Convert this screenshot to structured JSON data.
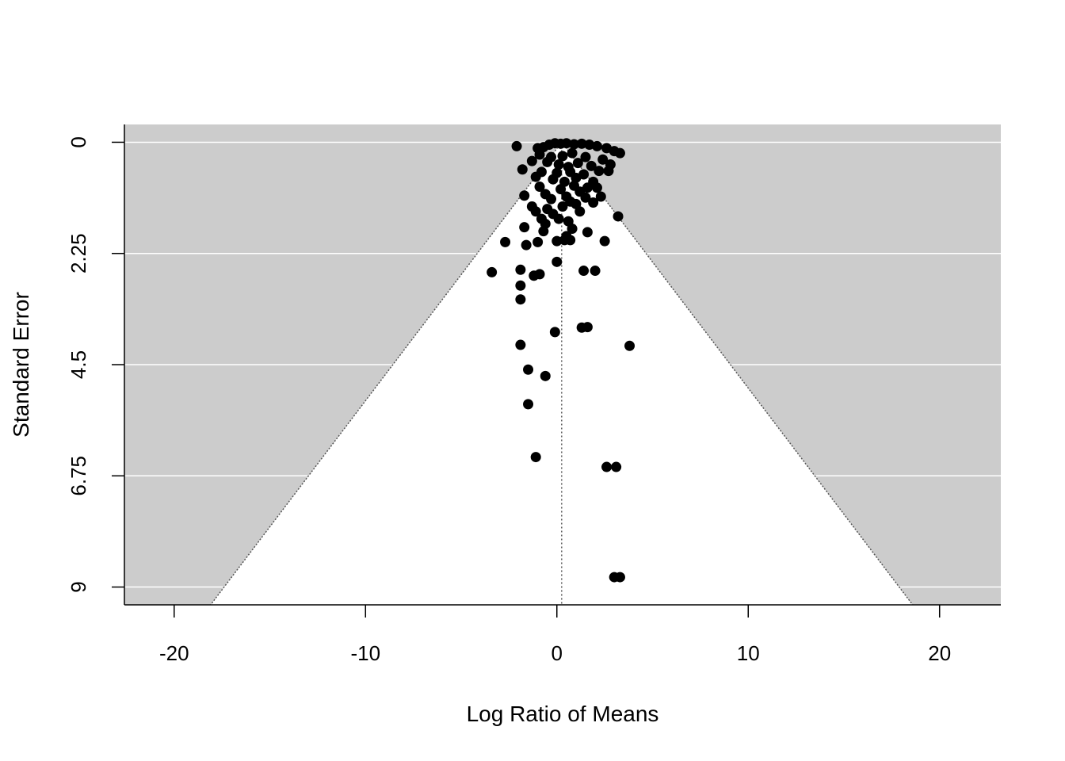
{
  "chart_data": {
    "type": "scatter",
    "title": "",
    "xlabel": "Log Ratio of Means",
    "ylabel": "Standard Error",
    "xlim": [
      -22.6,
      23.2
    ],
    "ylim": [
      9.36,
      -0.36
    ],
    "y_reversed": true,
    "x_ticks": [
      -20,
      -10,
      0,
      10,
      20
    ],
    "x_tick_labels": [
      "-20",
      "-10",
      "0",
      "10",
      "20"
    ],
    "y_ticks": [
      0,
      2.25,
      4.5,
      6.75,
      9
    ],
    "y_tick_labels": [
      "0",
      "2.25",
      "4.5",
      "6.75",
      "9"
    ],
    "grid": "horizontal at y ticks",
    "funnel_center": 0.25,
    "funnel_z": 1.96,
    "colors": {
      "background": "#cccccc",
      "funnel": "#ffffff",
      "grid": "#ffffff",
      "points": "#000000",
      "axis": "#000000"
    },
    "points": [
      {
        "x": -2.1,
        "y": 0.08
      },
      {
        "x": -1.0,
        "y": 0.12
      },
      {
        "x": -0.7,
        "y": 0.1
      },
      {
        "x": -0.4,
        "y": 0.05
      },
      {
        "x": -0.1,
        "y": 0.02
      },
      {
        "x": 0.2,
        "y": 0.03
      },
      {
        "x": 0.5,
        "y": 0.02
      },
      {
        "x": 0.9,
        "y": 0.04
      },
      {
        "x": 1.3,
        "y": 0.03
      },
      {
        "x": 1.7,
        "y": 0.05
      },
      {
        "x": 2.1,
        "y": 0.08
      },
      {
        "x": 2.6,
        "y": 0.12
      },
      {
        "x": 3.0,
        "y": 0.18
      },
      {
        "x": 3.3,
        "y": 0.22
      },
      {
        "x": -0.9,
        "y": 0.25
      },
      {
        "x": -0.3,
        "y": 0.3
      },
      {
        "x": 0.3,
        "y": 0.28
      },
      {
        "x": 0.8,
        "y": 0.22
      },
      {
        "x": 1.5,
        "y": 0.3
      },
      {
        "x": 2.4,
        "y": 0.35
      },
      {
        "x": -1.3,
        "y": 0.38
      },
      {
        "x": -0.5,
        "y": 0.4
      },
      {
        "x": 0.1,
        "y": 0.45
      },
      {
        "x": 0.6,
        "y": 0.5
      },
      {
        "x": 1.1,
        "y": 0.42
      },
      {
        "x": 1.8,
        "y": 0.48
      },
      {
        "x": 2.8,
        "y": 0.45
      },
      {
        "x": -1.8,
        "y": 0.55
      },
      {
        "x": -0.8,
        "y": 0.6
      },
      {
        "x": 0.0,
        "y": 0.62
      },
      {
        "x": 0.7,
        "y": 0.6
      },
      {
        "x": 1.4,
        "y": 0.65
      },
      {
        "x": 2.2,
        "y": 0.58
      },
      {
        "x": 2.7,
        "y": 0.58
      },
      {
        "x": -1.1,
        "y": 0.7
      },
      {
        "x": -0.2,
        "y": 0.75
      },
      {
        "x": 0.4,
        "y": 0.8
      },
      {
        "x": 1.0,
        "y": 0.72
      },
      {
        "x": 1.9,
        "y": 0.8
      },
      {
        "x": -0.9,
        "y": 0.9
      },
      {
        "x": 0.2,
        "y": 0.95
      },
      {
        "x": 0.9,
        "y": 0.88
      },
      {
        "x": 1.6,
        "y": 0.92
      },
      {
        "x": -0.6,
        "y": 1.05
      },
      {
        "x": 0.5,
        "y": 1.1
      },
      {
        "x": 1.2,
        "y": 1.0
      },
      {
        "x": 2.1,
        "y": 0.92
      },
      {
        "x": -1.7,
        "y": 1.08
      },
      {
        "x": -0.3,
        "y": 1.15
      },
      {
        "x": 0.7,
        "y": 1.2
      },
      {
        "x": 1.5,
        "y": 1.12
      },
      {
        "x": 2.3,
        "y": 1.1
      },
      {
        "x": -1.3,
        "y": 1.3
      },
      {
        "x": -0.5,
        "y": 1.35
      },
      {
        "x": 0.3,
        "y": 1.3
      },
      {
        "x": 1.0,
        "y": 1.25
      },
      {
        "x": 1.9,
        "y": 1.22
      },
      {
        "x": -0.8,
        "y": 1.55
      },
      {
        "x": -0.2,
        "y": 1.45
      },
      {
        "x": 0.6,
        "y": 1.6
      },
      {
        "x": 1.2,
        "y": 1.4
      },
      {
        "x": 3.2,
        "y": 1.5
      },
      {
        "x": -1.1,
        "y": 1.4
      },
      {
        "x": -0.6,
        "y": 1.65
      },
      {
        "x": 0.1,
        "y": 1.55
      },
      {
        "x": 0.8,
        "y": 1.75
      },
      {
        "x": -1.7,
        "y": 1.72
      },
      {
        "x": -0.7,
        "y": 1.8
      },
      {
        "x": 0.5,
        "y": 1.9
      },
      {
        "x": 1.6,
        "y": 1.82
      },
      {
        "x": 0.7,
        "y": 1.98
      },
      {
        "x": -2.7,
        "y": 2.02
      },
      {
        "x": -1.6,
        "y": 2.08
      },
      {
        "x": -1.0,
        "y": 2.02
      },
      {
        "x": 0.0,
        "y": 2.0
      },
      {
        "x": 0.4,
        "y": 1.98
      },
      {
        "x": 2.5,
        "y": 2.0
      },
      {
        "x": 0.0,
        "y": 2.42
      },
      {
        "x": -3.4,
        "y": 2.63
      },
      {
        "x": -1.9,
        "y": 2.58
      },
      {
        "x": -1.2,
        "y": 2.7
      },
      {
        "x": -0.9,
        "y": 2.67
      },
      {
        "x": 1.4,
        "y": 2.6
      },
      {
        "x": 2.0,
        "y": 2.6
      },
      {
        "x": -1.9,
        "y": 2.9
      },
      {
        "x": -1.9,
        "y": 3.18
      },
      {
        "x": 1.3,
        "y": 3.75
      },
      {
        "x": 1.6,
        "y": 3.74
      },
      {
        "x": -0.1,
        "y": 3.84
      },
      {
        "x": -1.9,
        "y": 4.1
      },
      {
        "x": 3.8,
        "y": 4.12
      },
      {
        "x": -1.5,
        "y": 4.6
      },
      {
        "x": -0.6,
        "y": 4.73
      },
      {
        "x": -1.5,
        "y": 5.3
      },
      {
        "x": -1.1,
        "y": 6.37
      },
      {
        "x": 2.6,
        "y": 6.57
      },
      {
        "x": 3.1,
        "y": 6.57
      },
      {
        "x": 3.0,
        "y": 8.8
      },
      {
        "x": 3.3,
        "y": 8.8
      }
    ]
  }
}
